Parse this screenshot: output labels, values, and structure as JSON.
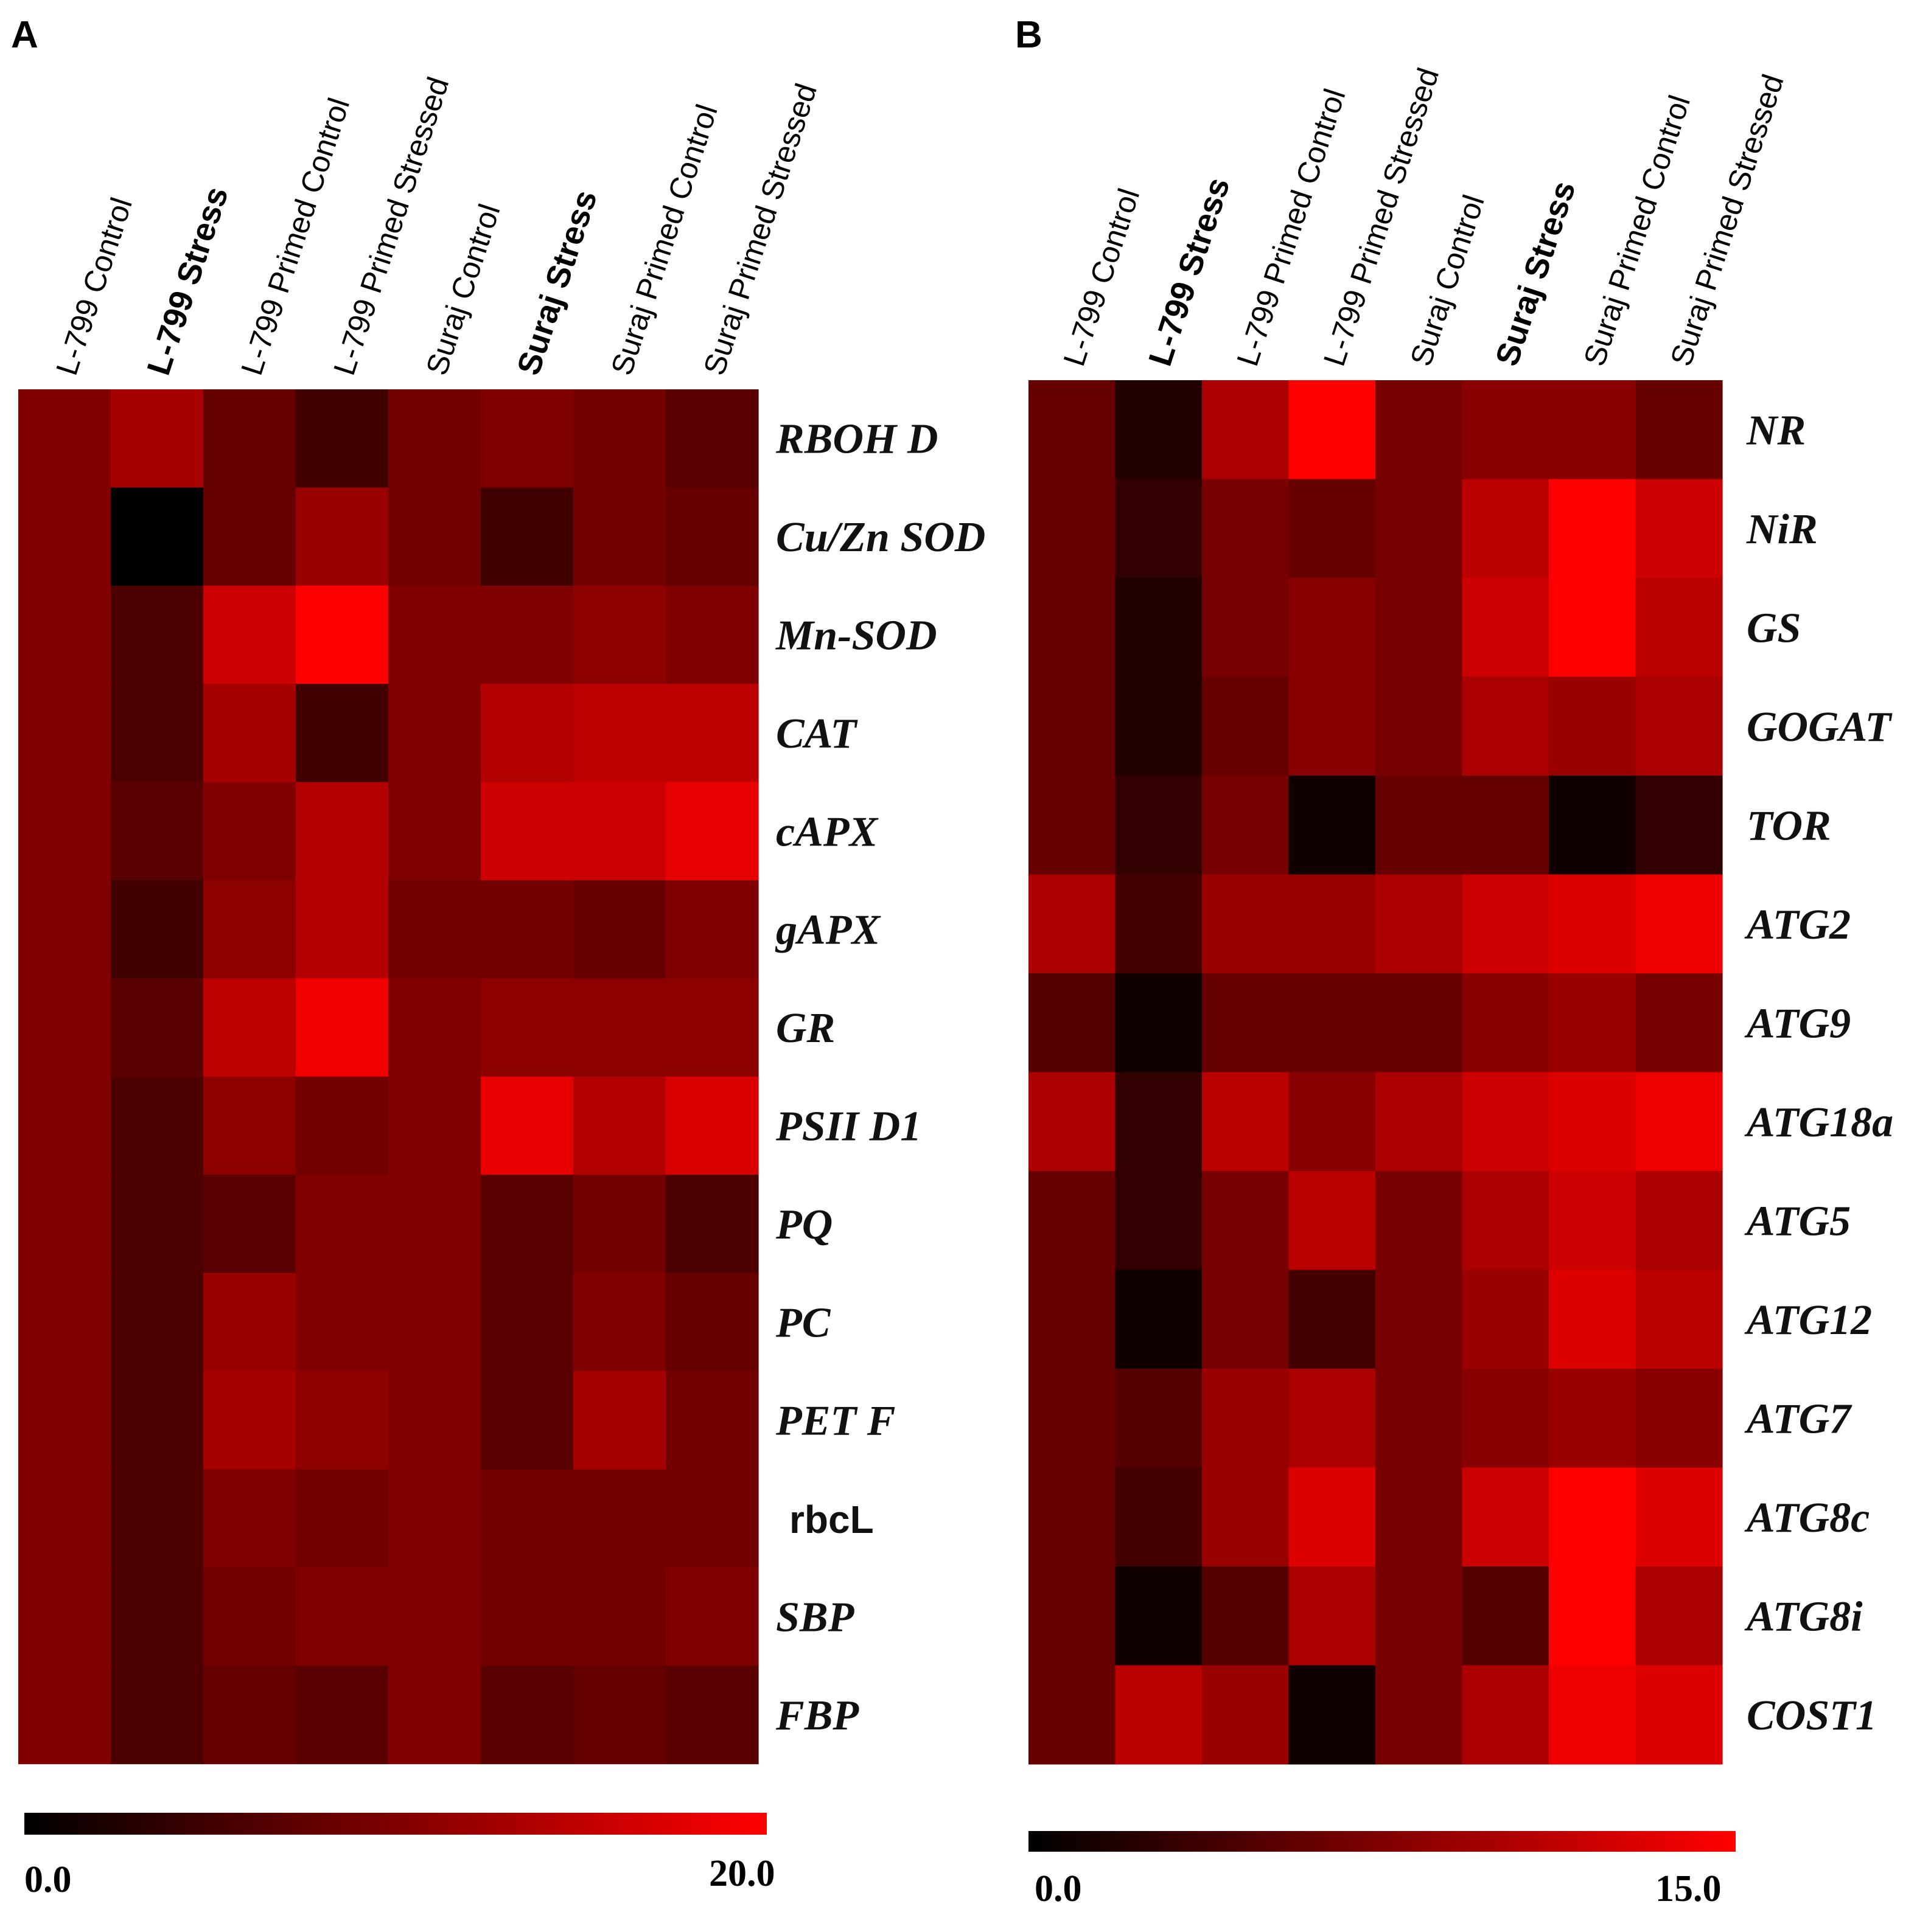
{
  "chart_data": [
    {
      "type": "heatmap",
      "panel": "A",
      "columns": [
        "L-799 Control",
        "L-799 Stress",
        "L-799 Primed Control",
        "L-799 Primed Stressed",
        "Suraj Control",
        "Suraj Stress",
        "Suraj Primed Control",
        "Suraj Primed Stressed"
      ],
      "bold_columns": [
        1,
        5
      ],
      "rows": [
        "RBOH D",
        "Cu/Zn SOD",
        "Mn-SOD",
        "CAT",
        "cAPX",
        "gAPX",
        "GR",
        "PSII D1",
        "PQ",
        "PC",
        "PET F",
        "rbcL",
        "SBP",
        "FBP"
      ],
      "upright_rows": [
        11
      ],
      "values": [
        [
          10,
          13,
          8,
          5,
          9,
          10,
          9,
          7
        ],
        [
          10,
          0,
          8,
          12,
          9,
          5,
          9,
          8
        ],
        [
          10,
          6,
          16,
          20,
          10,
          10,
          11,
          10
        ],
        [
          10,
          6,
          13,
          5,
          10,
          14,
          15,
          15
        ],
        [
          10,
          7,
          10,
          14,
          10,
          16,
          16,
          18
        ],
        [
          10,
          5,
          11,
          14,
          9,
          9,
          8,
          10
        ],
        [
          10,
          7,
          15,
          19,
          10,
          11,
          11,
          11
        ],
        [
          10,
          6,
          11,
          9,
          10,
          18,
          14,
          17
        ],
        [
          10,
          6,
          7,
          10,
          10,
          7,
          9,
          6
        ],
        [
          10,
          6,
          12,
          10,
          10,
          7,
          10,
          8
        ],
        [
          10,
          6,
          13,
          11,
          10,
          7,
          13,
          9
        ],
        [
          10,
          6,
          10,
          9,
          10,
          9,
          9,
          9
        ],
        [
          10,
          6,
          9,
          10,
          10,
          9,
          9,
          10
        ],
        [
          10,
          6,
          8,
          7,
          10,
          7,
          8,
          7
        ]
      ],
      "scale": {
        "min": 0.0,
        "max": 20.0,
        "min_label": "0.0",
        "max_label": "20.0"
      },
      "colors": {
        "low": "#000000",
        "high": "#ff0000"
      }
    },
    {
      "type": "heatmap",
      "panel": "B",
      "columns": [
        "L-799 Control",
        "L-799 Stress",
        "L-799 Primed Control",
        "L-799 Primed Stressed",
        "Suraj Control",
        "Suraj Stress",
        "Suraj Primed Control",
        "Suraj Primed Stressed"
      ],
      "bold_columns": [
        1,
        5
      ],
      "rows": [
        "NR",
        "NiR",
        "GS",
        "GOGAT",
        "TOR",
        "ATG2",
        "ATG9",
        "ATG18a",
        "ATG5",
        "ATG12",
        "ATG7",
        "ATG8c",
        "ATG8i",
        "COST1"
      ],
      "upright_rows": [],
      "values": [
        [
          6,
          2,
          10,
          15,
          7,
          8,
          8,
          6
        ],
        [
          6,
          3,
          7,
          6,
          7,
          11,
          15,
          12
        ],
        [
          6,
          2,
          7,
          8,
          7,
          12,
          15,
          11
        ],
        [
          6,
          2,
          6,
          8,
          7,
          10,
          9,
          10
        ],
        [
          6,
          3,
          7,
          1,
          6,
          6,
          1,
          3
        ],
        [
          10,
          4,
          9,
          9,
          10,
          12,
          13,
          14
        ],
        [
          5,
          1,
          6,
          6,
          6,
          8,
          9,
          7
        ],
        [
          10,
          3,
          11,
          8,
          10,
          12,
          13,
          14
        ],
        [
          6,
          3,
          7,
          11,
          7,
          10,
          12,
          10
        ],
        [
          6,
          1,
          7,
          4,
          7,
          9,
          13,
          11
        ],
        [
          6,
          5,
          9,
          10,
          7,
          8,
          9,
          8
        ],
        [
          6,
          4,
          9,
          13,
          7,
          12,
          15,
          13
        ],
        [
          6,
          1,
          5,
          10,
          7,
          5,
          15,
          10
        ],
        [
          6,
          11,
          9,
          1,
          7,
          10,
          14,
          13
        ]
      ],
      "scale": {
        "min": 0.0,
        "max": 15.0,
        "min_label": "0.0",
        "max_label": "15.0"
      },
      "colors": {
        "low": "#000000",
        "high": "#ff0000"
      }
    }
  ]
}
